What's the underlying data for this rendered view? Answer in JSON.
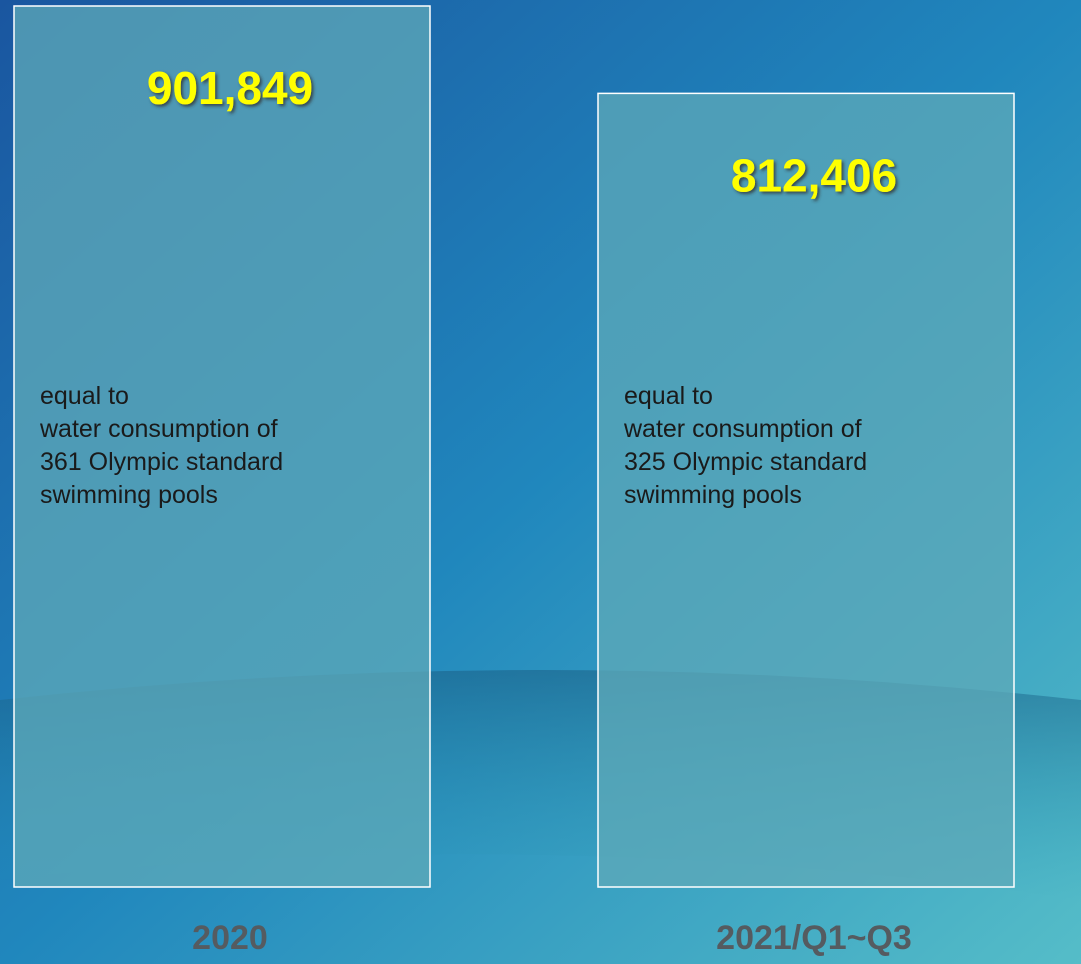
{
  "chart_data": {
    "type": "bar",
    "categories": [
      "2020",
      "2021/Q1~Q3"
    ],
    "values": [
      901849,
      812406
    ],
    "value_labels": [
      "901,849",
      "812,406"
    ],
    "annotations": [
      [
        "equal to",
        "water consumption of",
        "361 Olympic standard",
        "swimming pools"
      ],
      [
        "equal to",
        "water consumption of",
        "325 Olympic standard",
        "swimming pools"
      ]
    ],
    "color": "#5fa9b8",
    "value_label_color": "#ffff00"
  }
}
